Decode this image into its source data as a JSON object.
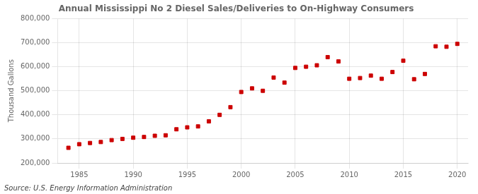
{
  "chart_data": {
    "type": "scatter",
    "title": "Annual Mississippi No 2 Diesel Sales/Deliveries to On-Highway Consumers",
    "ylabel": "Thousand Gallons",
    "annotations": [
      "Source: U.S. Energy Information Administration"
    ],
    "x": [
      1984,
      1985,
      1986,
      1987,
      1988,
      1989,
      1990,
      1991,
      1992,
      1993,
      1994,
      1995,
      1996,
      1997,
      1998,
      1999,
      2000,
      2001,
      2002,
      2003,
      2004,
      2005,
      2006,
      2007,
      2008,
      2009,
      2010,
      2011,
      2012,
      2013,
      2014,
      2015,
      2016,
      2017,
      2018,
      2019,
      2020
    ],
    "values": [
      263000,
      278000,
      283000,
      287000,
      295000,
      300000,
      305000,
      308000,
      313000,
      315000,
      340000,
      348000,
      352000,
      373000,
      400000,
      432000,
      495000,
      510000,
      500000,
      555000,
      534000,
      595000,
      600000,
      606000,
      640000,
      622000,
      550000,
      553000,
      563000,
      550000,
      578000,
      625000,
      548000,
      570000,
      685000,
      683000,
      695000
    ],
    "color": "#cc0000",
    "marker": "square",
    "xlim": [
      1983,
      2021
    ],
    "xticks": [
      1985,
      1990,
      1995,
      2000,
      2005,
      2010,
      2015,
      2020
    ],
    "ylim": [
      200000,
      800000
    ],
    "yticks": [
      {
        "value": 200000,
        "label": "200,000"
      },
      {
        "value": 300000,
        "label": "300,000"
      },
      {
        "value": 400000,
        "label": "400,000"
      },
      {
        "value": 500000,
        "label": "500,000"
      },
      {
        "value": 600000,
        "label": "600,000"
      },
      {
        "value": 700000,
        "label": "700,000"
      },
      {
        "value": 800000,
        "label": "800,000"
      }
    ],
    "grid": true
  }
}
